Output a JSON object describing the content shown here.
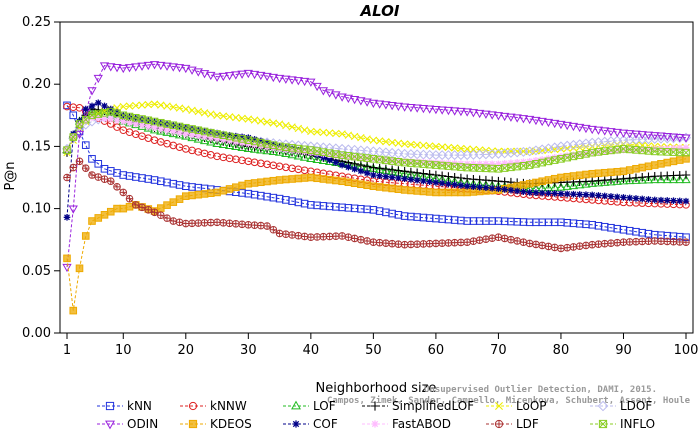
{
  "chart_data": {
    "type": "line",
    "title": "ALOI",
    "xlabel": "Neighborhood size",
    "ylabel": "P@n",
    "xlim": [
      1,
      100
    ],
    "ylim": [
      0,
      0.25
    ],
    "xticks": [
      1,
      10,
      20,
      30,
      40,
      50,
      60,
      70,
      80,
      90,
      100
    ],
    "yticks": [
      "0.00",
      "0.05",
      "0.10",
      "0.15",
      "0.20",
      "0.25"
    ],
    "grid": false,
    "legend_position": "bottom",
    "watermark": [
      "Unsupervised Outlier Detection, DAMI, 2015.",
      "Campos, Zimek, Sander, Campello, Micenkova, Schubert, Assent, Houle"
    ],
    "series": [
      {
        "name": "kNN",
        "color": "#2233dd",
        "marker": "square",
        "points": [
          [
            1,
            0.183
          ],
          [
            2,
            0.175
          ],
          [
            3,
            0.162
          ],
          [
            5,
            0.14
          ],
          [
            7,
            0.132
          ],
          [
            10,
            0.127
          ],
          [
            15,
            0.123
          ],
          [
            20,
            0.118
          ],
          [
            25,
            0.115
          ],
          [
            30,
            0.112
          ],
          [
            35,
            0.108
          ],
          [
            40,
            0.103
          ],
          [
            45,
            0.101
          ],
          [
            50,
            0.099
          ],
          [
            55,
            0.094
          ],
          [
            60,
            0.092
          ],
          [
            65,
            0.09
          ],
          [
            70,
            0.09
          ],
          [
            75,
            0.089
          ],
          [
            80,
            0.089
          ],
          [
            85,
            0.087
          ],
          [
            90,
            0.083
          ],
          [
            95,
            0.079
          ],
          [
            100,
            0.077
          ]
        ]
      },
      {
        "name": "kNNW",
        "color": "#dd2222",
        "marker": "circle",
        "points": [
          [
            1,
            0.182
          ],
          [
            3,
            0.181
          ],
          [
            5,
            0.175
          ],
          [
            8,
            0.168
          ],
          [
            10,
            0.163
          ],
          [
            15,
            0.155
          ],
          [
            20,
            0.148
          ],
          [
            25,
            0.142
          ],
          [
            30,
            0.138
          ],
          [
            35,
            0.134
          ],
          [
            40,
            0.13
          ],
          [
            45,
            0.126
          ],
          [
            50,
            0.122
          ],
          [
            55,
            0.12
          ],
          [
            60,
            0.118
          ],
          [
            65,
            0.116
          ],
          [
            70,
            0.114
          ],
          [
            75,
            0.111
          ],
          [
            80,
            0.109
          ],
          [
            85,
            0.107
          ],
          [
            90,
            0.105
          ],
          [
            95,
            0.104
          ],
          [
            100,
            0.103
          ]
        ]
      },
      {
        "name": "LOF",
        "color": "#22bb22",
        "marker": "triangle-up",
        "points": [
          [
            1,
            0.147
          ],
          [
            3,
            0.17
          ],
          [
            5,
            0.178
          ],
          [
            8,
            0.175
          ],
          [
            10,
            0.17
          ],
          [
            15,
            0.163
          ],
          [
            20,
            0.158
          ],
          [
            25,
            0.152
          ],
          [
            30,
            0.148
          ],
          [
            35,
            0.145
          ],
          [
            40,
            0.14
          ],
          [
            45,
            0.136
          ],
          [
            50,
            0.132
          ],
          [
            55,
            0.128
          ],
          [
            60,
            0.124
          ],
          [
            65,
            0.12
          ],
          [
            70,
            0.118
          ],
          [
            75,
            0.116
          ],
          [
            80,
            0.117
          ],
          [
            85,
            0.12
          ],
          [
            90,
            0.122
          ],
          [
            95,
            0.123
          ],
          [
            100,
            0.123
          ]
        ]
      },
      {
        "name": "SimplifiedLOF",
        "color": "#000000",
        "marker": "plus",
        "points": [
          [
            1,
            0.145
          ],
          [
            3,
            0.17
          ],
          [
            5,
            0.18
          ],
          [
            8,
            0.178
          ],
          [
            10,
            0.172
          ],
          [
            15,
            0.165
          ],
          [
            20,
            0.16
          ],
          [
            25,
            0.155
          ],
          [
            30,
            0.15
          ],
          [
            35,
            0.147
          ],
          [
            40,
            0.143
          ],
          [
            45,
            0.138
          ],
          [
            50,
            0.133
          ],
          [
            55,
            0.13
          ],
          [
            60,
            0.127
          ],
          [
            65,
            0.124
          ],
          [
            70,
            0.122
          ],
          [
            75,
            0.12
          ],
          [
            80,
            0.121
          ],
          [
            85,
            0.122
          ],
          [
            90,
            0.124
          ],
          [
            95,
            0.126
          ],
          [
            100,
            0.127
          ]
        ]
      },
      {
        "name": "LoOP",
        "color": "#eeee00",
        "marker": "cross",
        "points": [
          [
            1,
            0.145
          ],
          [
            3,
            0.165
          ],
          [
            5,
            0.175
          ],
          [
            8,
            0.18
          ],
          [
            10,
            0.182
          ],
          [
            15,
            0.184
          ],
          [
            20,
            0.18
          ],
          [
            25,
            0.175
          ],
          [
            30,
            0.172
          ],
          [
            35,
            0.168
          ],
          [
            40,
            0.162
          ],
          [
            45,
            0.16
          ],
          [
            50,
            0.155
          ],
          [
            55,
            0.152
          ],
          [
            60,
            0.15
          ],
          [
            65,
            0.148
          ],
          [
            70,
            0.146
          ],
          [
            75,
            0.146
          ],
          [
            80,
            0.148
          ],
          [
            85,
            0.15
          ],
          [
            90,
            0.152
          ],
          [
            95,
            0.15
          ],
          [
            100,
            0.149
          ]
        ]
      },
      {
        "name": "LDOF",
        "color": "#bbbbee",
        "marker": "diamond",
        "points": [
          [
            1,
            0.148
          ],
          [
            3,
            0.165
          ],
          [
            5,
            0.17
          ],
          [
            8,
            0.175
          ],
          [
            10,
            0.173
          ],
          [
            15,
            0.168
          ],
          [
            20,
            0.164
          ],
          [
            25,
            0.16
          ],
          [
            30,
            0.155
          ],
          [
            35,
            0.152
          ],
          [
            40,
            0.15
          ],
          [
            45,
            0.148
          ],
          [
            50,
            0.146
          ],
          [
            55,
            0.144
          ],
          [
            60,
            0.143
          ],
          [
            65,
            0.143
          ],
          [
            70,
            0.144
          ],
          [
            75,
            0.146
          ],
          [
            80,
            0.15
          ],
          [
            85,
            0.153
          ],
          [
            90,
            0.155
          ],
          [
            95,
            0.156
          ],
          [
            100,
            0.157
          ]
        ]
      },
      {
        "name": "ODIN",
        "color": "#9922dd",
        "marker": "triangle-down",
        "points": [
          [
            1,
            0.053
          ],
          [
            2,
            0.1
          ],
          [
            3,
            0.16
          ],
          [
            5,
            0.195
          ],
          [
            7,
            0.215
          ],
          [
            10,
            0.213
          ],
          [
            15,
            0.216
          ],
          [
            20,
            0.213
          ],
          [
            25,
            0.206
          ],
          [
            30,
            0.209
          ],
          [
            35,
            0.205
          ],
          [
            40,
            0.202
          ],
          [
            42,
            0.195
          ],
          [
            45,
            0.19
          ],
          [
            50,
            0.185
          ],
          [
            55,
            0.182
          ],
          [
            60,
            0.18
          ],
          [
            65,
            0.178
          ],
          [
            70,
            0.175
          ],
          [
            75,
            0.172
          ],
          [
            80,
            0.168
          ],
          [
            85,
            0.164
          ],
          [
            90,
            0.161
          ],
          [
            95,
            0.159
          ],
          [
            100,
            0.157
          ]
        ]
      },
      {
        "name": "KDEOS",
        "color": "#eeaa00",
        "marker": "square-filled",
        "points": [
          [
            1,
            0.06
          ],
          [
            2,
            0.018
          ],
          [
            3,
            0.052
          ],
          [
            4,
            0.078
          ],
          [
            5,
            0.09
          ],
          [
            7,
            0.095
          ],
          [
            9,
            0.1
          ],
          [
            10,
            0.1
          ],
          [
            12,
            0.103
          ],
          [
            15,
            0.098
          ],
          [
            20,
            0.11
          ],
          [
            25,
            0.113
          ],
          [
            30,
            0.12
          ],
          [
            35,
            0.123
          ],
          [
            40,
            0.125
          ],
          [
            45,
            0.122
          ],
          [
            50,
            0.118
          ],
          [
            55,
            0.115
          ],
          [
            60,
            0.113
          ],
          [
            65,
            0.113
          ],
          [
            70,
            0.115
          ],
          [
            75,
            0.12
          ],
          [
            80,
            0.125
          ],
          [
            85,
            0.128
          ],
          [
            90,
            0.13
          ],
          [
            95,
            0.135
          ],
          [
            100,
            0.14
          ]
        ]
      },
      {
        "name": "COF",
        "color": "#000088",
        "marker": "star",
        "points": [
          [
            1,
            0.093
          ],
          [
            2,
            0.16
          ],
          [
            4,
            0.18
          ],
          [
            6,
            0.185
          ],
          [
            8,
            0.18
          ],
          [
            10,
            0.175
          ],
          [
            15,
            0.17
          ],
          [
            20,
            0.165
          ],
          [
            25,
            0.16
          ],
          [
            30,
            0.157
          ],
          [
            35,
            0.15
          ],
          [
            40,
            0.145
          ],
          [
            45,
            0.135
          ],
          [
            50,
            0.127
          ],
          [
            55,
            0.124
          ],
          [
            60,
            0.121
          ],
          [
            65,
            0.118
          ],
          [
            70,
            0.116
          ],
          [
            75,
            0.113
          ],
          [
            80,
            0.112
          ],
          [
            85,
            0.111
          ],
          [
            90,
            0.109
          ],
          [
            95,
            0.107
          ],
          [
            100,
            0.106
          ]
        ]
      },
      {
        "name": "FastABOD",
        "color": "#ffbbff",
        "marker": "star",
        "points": [
          [
            1,
            0.148
          ],
          [
            3,
            0.168
          ],
          [
            5,
            0.173
          ],
          [
            8,
            0.172
          ],
          [
            10,
            0.17
          ],
          [
            15,
            0.165
          ],
          [
            20,
            0.16
          ],
          [
            25,
            0.156
          ],
          [
            30,
            0.152
          ],
          [
            35,
            0.148
          ],
          [
            40,
            0.145
          ],
          [
            45,
            0.142
          ],
          [
            50,
            0.14
          ],
          [
            55,
            0.138
          ],
          [
            60,
            0.137
          ],
          [
            65,
            0.136
          ],
          [
            70,
            0.136
          ],
          [
            75,
            0.138
          ],
          [
            80,
            0.142
          ],
          [
            85,
            0.145
          ],
          [
            90,
            0.147
          ],
          [
            95,
            0.148
          ],
          [
            100,
            0.149
          ]
        ]
      },
      {
        "name": "LDF",
        "color": "#aa3333",
        "marker": "circle-plus",
        "points": [
          [
            1,
            0.125
          ],
          [
            2,
            0.133
          ],
          [
            3,
            0.138
          ],
          [
            5,
            0.127
          ],
          [
            8,
            0.122
          ],
          [
            10,
            0.113
          ],
          [
            12,
            0.103
          ],
          [
            15,
            0.097
          ],
          [
            18,
            0.09
          ],
          [
            20,
            0.088
          ],
          [
            25,
            0.089
          ],
          [
            30,
            0.087
          ],
          [
            33,
            0.086
          ],
          [
            35,
            0.08
          ],
          [
            40,
            0.077
          ],
          [
            45,
            0.078
          ],
          [
            50,
            0.073
          ],
          [
            55,
            0.071
          ],
          [
            60,
            0.072
          ],
          [
            65,
            0.073
          ],
          [
            70,
            0.077
          ],
          [
            75,
            0.072
          ],
          [
            80,
            0.068
          ],
          [
            85,
            0.071
          ],
          [
            90,
            0.073
          ],
          [
            95,
            0.074
          ],
          [
            100,
            0.073
          ]
        ]
      },
      {
        "name": "INFLO",
        "color": "#88cc22",
        "marker": "hourglass",
        "points": [
          [
            1,
            0.147
          ],
          [
            3,
            0.168
          ],
          [
            5,
            0.175
          ],
          [
            8,
            0.178
          ],
          [
            10,
            0.175
          ],
          [
            15,
            0.17
          ],
          [
            20,
            0.165
          ],
          [
            25,
            0.16
          ],
          [
            30,
            0.155
          ],
          [
            35,
            0.15
          ],
          [
            40,
            0.147
          ],
          [
            45,
            0.143
          ],
          [
            50,
            0.14
          ],
          [
            55,
            0.137
          ],
          [
            60,
            0.135
          ],
          [
            65,
            0.133
          ],
          [
            70,
            0.132
          ],
          [
            75,
            0.135
          ],
          [
            80,
            0.14
          ],
          [
            85,
            0.145
          ],
          [
            90,
            0.148
          ],
          [
            95,
            0.146
          ],
          [
            100,
            0.145
          ]
        ]
      }
    ]
  }
}
